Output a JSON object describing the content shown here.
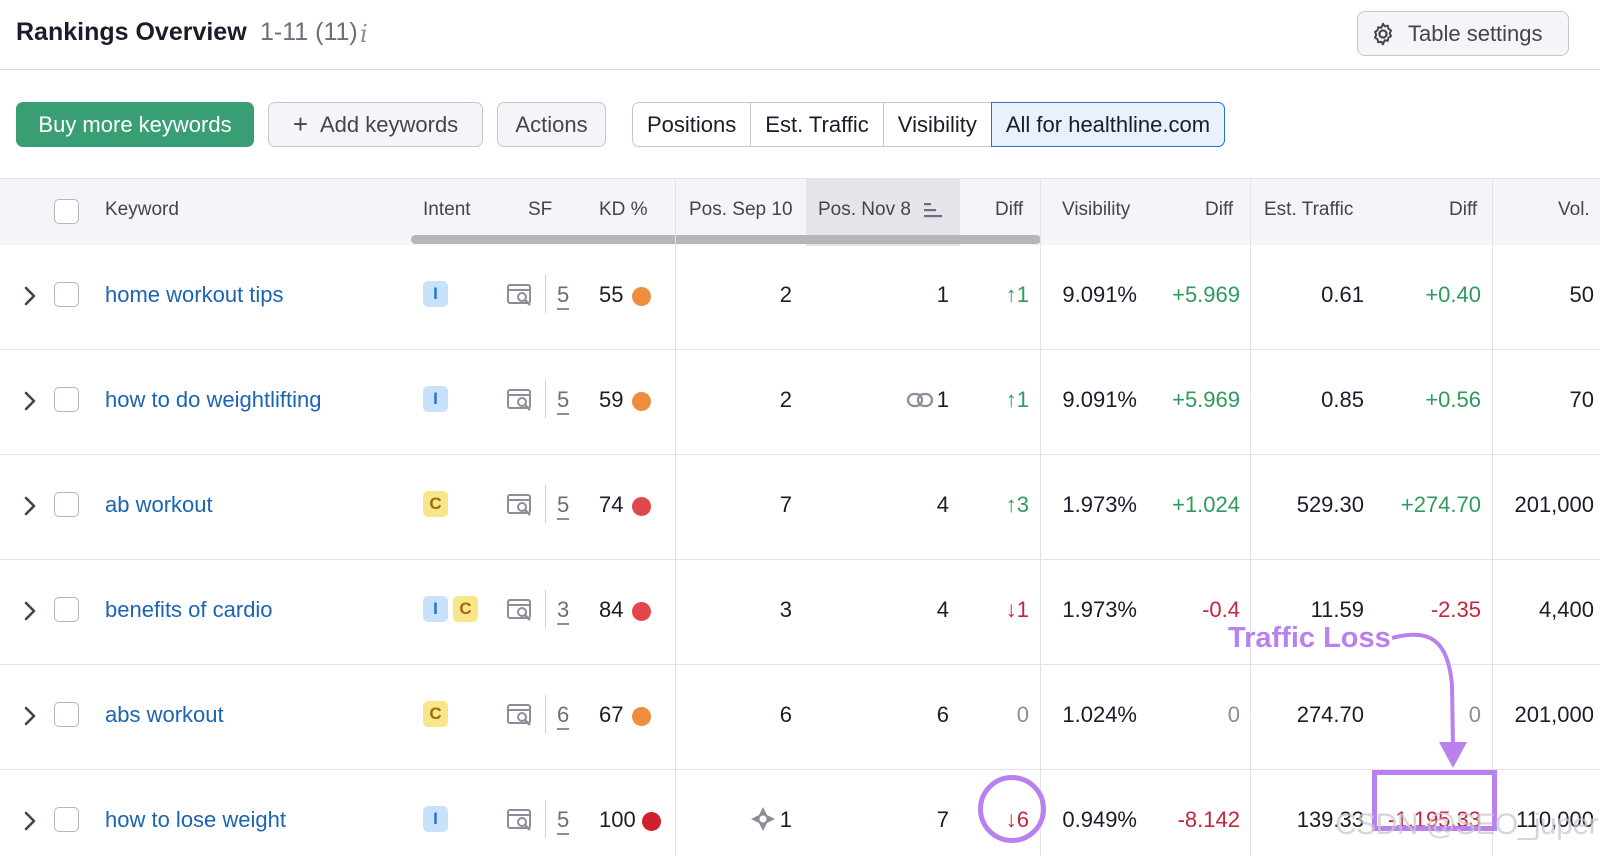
{
  "header": {
    "title": "Rankings Overview",
    "range": "1-11 (11)",
    "info_icon": "info-icon",
    "settings_label": "Table settings",
    "settings_icon": "gear-icon"
  },
  "toolbar": {
    "buy_label": "Buy more keywords",
    "add_label": "Add keywords",
    "add_icon_glyph": "+",
    "actions_label": "Actions",
    "segments": [
      "Positions",
      "Est. Traffic",
      "Visibility",
      "All for healthline.com"
    ],
    "active_segment": "All for healthline.com"
  },
  "columns": {
    "keyword": "Keyword",
    "intent": "Intent",
    "sf": "SF",
    "kd": "KD %",
    "pos_sep": "Pos. Sep 10",
    "pos_nov": "Pos. Nov 8",
    "diff": "Diff",
    "visibility": "Visibility",
    "vis_diff": "Diff",
    "traffic": "Est. Traffic",
    "traffic_diff": "Diff",
    "vol": "Vol."
  },
  "colors": {
    "accent_green": "#3a9e74",
    "link_blue": "#1b63b3",
    "positive": "#2e9b5d",
    "negative": "#c6233c",
    "kd_orange": "#ef8c3e",
    "kd_red": "#e0474c",
    "kd_darkred": "#d1202d",
    "annotation": "#b981ee"
  },
  "rows": [
    {
      "keyword": "home workout tips",
      "intents": [
        "I"
      ],
      "sf": "5",
      "kd": "55",
      "kd_color": "orange",
      "pos_sep": "2",
      "pos_sep_icon": "",
      "pos_nov": "1",
      "pos_nov_icon": "",
      "diff": "↑1",
      "diff_tone": "green",
      "visibility": "9.091%",
      "vis_diff": "+5.969",
      "vis_diff_tone": "green",
      "traffic": "0.61",
      "traffic_diff": "+0.40",
      "traffic_diff_tone": "green",
      "vol": "50"
    },
    {
      "keyword": "how to do weightlifting",
      "intents": [
        "I"
      ],
      "sf": "5",
      "kd": "59",
      "kd_color": "orange",
      "pos_sep": "2",
      "pos_sep_icon": "",
      "pos_nov": "1",
      "pos_nov_icon": "link-icon",
      "diff": "↑1",
      "diff_tone": "green",
      "visibility": "9.091%",
      "vis_diff": "+5.969",
      "vis_diff_tone": "green",
      "traffic": "0.85",
      "traffic_diff": "+0.56",
      "traffic_diff_tone": "green",
      "vol": "70"
    },
    {
      "keyword": "ab workout",
      "intents": [
        "C"
      ],
      "sf": "5",
      "kd": "74",
      "kd_color": "red",
      "pos_sep": "7",
      "pos_sep_icon": "",
      "pos_nov": "4",
      "pos_nov_icon": "",
      "diff": "↑3",
      "diff_tone": "green",
      "visibility": "1.973%",
      "vis_diff": "+1.024",
      "vis_diff_tone": "green",
      "traffic": "529.30",
      "traffic_diff": "+274.70",
      "traffic_diff_tone": "green",
      "vol": "201,000"
    },
    {
      "keyword": "benefits of cardio",
      "intents": [
        "I",
        "C"
      ],
      "sf": "3",
      "kd": "84",
      "kd_color": "red",
      "pos_sep": "3",
      "pos_sep_icon": "",
      "pos_nov": "4",
      "pos_nov_icon": "",
      "diff": "↓1",
      "diff_tone": "red",
      "visibility": "1.973%",
      "vis_diff": "-0.4",
      "vis_diff_tone": "red",
      "traffic": "11.59",
      "traffic_diff": "-2.35",
      "traffic_diff_tone": "red",
      "vol": "4,400"
    },
    {
      "keyword": "abs workout",
      "intents": [
        "C"
      ],
      "sf": "6",
      "kd": "67",
      "kd_color": "orange",
      "pos_sep": "6",
      "pos_sep_icon": "",
      "pos_nov": "6",
      "pos_nov_icon": "",
      "diff": "0",
      "diff_tone": "gray",
      "visibility": "1.024%",
      "vis_diff": "0",
      "vis_diff_tone": "gray",
      "traffic": "274.70",
      "traffic_diff": "0",
      "traffic_diff_tone": "gray",
      "vol": "201,000"
    },
    {
      "keyword": "how to lose weight",
      "intents": [
        "I"
      ],
      "sf": "5",
      "kd": "100",
      "kd_color": "darkred",
      "pos_sep": "1",
      "pos_sep_icon": "ai-overview-icon",
      "pos_nov": "7",
      "pos_nov_icon": "",
      "diff": "↓6",
      "diff_tone": "red",
      "visibility": "0.949%",
      "vis_diff": "-8.142",
      "vis_diff_tone": "red",
      "traffic": "139.33",
      "traffic_diff": "-1,195.33",
      "traffic_diff_tone": "red",
      "vol": "110,000"
    }
  ],
  "annotation": {
    "label": "Traffic Loss"
  },
  "watermark": "CSDN @SEO_juper"
}
